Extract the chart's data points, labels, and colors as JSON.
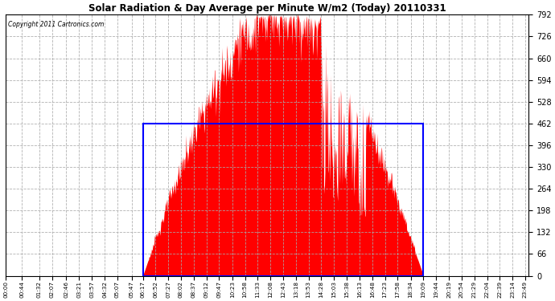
{
  "title": "Solar Radiation & Day Average per Minute W/m2 (Today) 20110331",
  "copyright_text": "Copyright 2011 Cartronics.com",
  "background_color": "#ffffff",
  "plot_bg_color": "#ffffff",
  "grid_color": "#aaaaaa",
  "ymin": 0.0,
  "ymax": 792.0,
  "yticks": [
    0.0,
    66.0,
    132.0,
    198.0,
    264.0,
    330.0,
    396.0,
    462.0,
    528.0,
    594.0,
    660.0,
    726.0,
    792.0
  ],
  "fill_color": "#ff0000",
  "avg_rect_color": "#0000ff",
  "avg_value": 462.0,
  "sunrise_min": 377,
  "sunset_min": 1149,
  "total_minutes": 1440,
  "tick_step": 44,
  "xtick_labels": [
    "00:00",
    "00:44",
    "01:32",
    "02:07",
    "02:46",
    "03:21",
    "03:57",
    "04:32",
    "05:07",
    "05:47",
    "06:17",
    "06:52",
    "07:27",
    "08:02",
    "08:37",
    "09:12",
    "09:47",
    "10:23",
    "10:58",
    "11:33",
    "12:08",
    "12:43",
    "13:18",
    "13:53",
    "14:28",
    "15:03",
    "15:38",
    "16:13",
    "16:48",
    "17:23",
    "17:58",
    "18:34",
    "19:09",
    "19:44",
    "20:19",
    "20:54",
    "21:29",
    "22:04",
    "22:39",
    "23:14",
    "23:49"
  ]
}
